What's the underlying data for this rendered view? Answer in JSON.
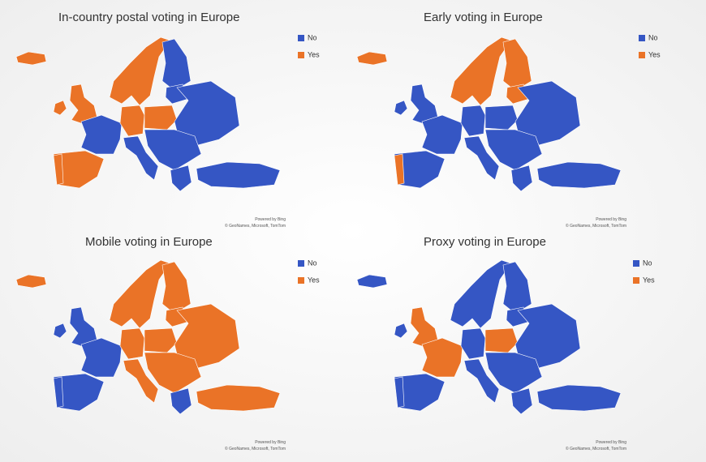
{
  "panels": [
    {
      "title": "In-country postal voting in Europe",
      "legend": [
        "No",
        "Yes"
      ],
      "attribution": [
        "Powered by Bing",
        "© GeoNames, Microsoft, TomTom"
      ]
    },
    {
      "title": "Early voting in Europe",
      "legend": [
        "No",
        "Yes"
      ],
      "attribution": [
        "Powered by Bing",
        "© GeoNames, Microsoft, TomTom"
      ]
    },
    {
      "title": "Mobile voting in Europe",
      "legend": [
        "No",
        "Yes"
      ],
      "attribution": [
        "Powered by Bing",
        "© GeoNames, Microsoft, TomTom"
      ]
    },
    {
      "title": "Proxy voting in Europe",
      "legend": [
        "No",
        "Yes"
      ],
      "attribution": [
        "Powered by Bing",
        "© GeoNames, Microsoft, TomTom"
      ]
    }
  ]
}
